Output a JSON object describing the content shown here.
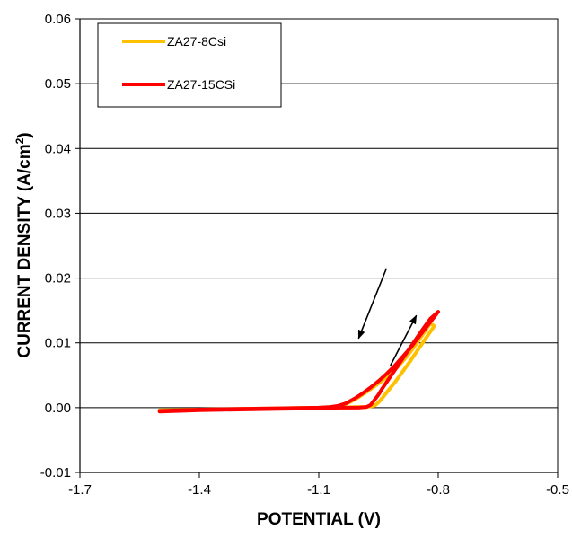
{
  "chart_data": {
    "type": "line",
    "title": "",
    "xlabel": "POTENTIAL (V)",
    "ylabel": "CURRENT DENSITY (A/cm",
    "ylabel_superscript": "2",
    "ylabel_suffix": ")",
    "xlim": [
      -1.7,
      -0.5
    ],
    "ylim": [
      -0.01,
      0.06
    ],
    "x_ticks": [
      -1.7,
      -1.4,
      -1.1,
      -0.8,
      -0.5
    ],
    "x_tick_labels": [
      "-1.7",
      "-1.4",
      "-1.1",
      "-0.8",
      "-0.5"
    ],
    "y_ticks": [
      -0.01,
      0.0,
      0.01,
      0.02,
      0.03,
      0.04,
      0.05,
      0.06
    ],
    "y_tick_labels": [
      "-0.01",
      "0.00",
      "0.01",
      "0.02",
      "0.03",
      "0.04",
      "0.05",
      "0.06"
    ],
    "grid": "horizontal",
    "legend_position": "top-left",
    "series": [
      {
        "name": "ZA27-8Csi",
        "color": "#FFC000",
        "x": [
          -1.5,
          -1.4,
          -1.3,
          -1.2,
          -1.1,
          -1.05,
          -1.0,
          -0.98,
          -0.96,
          -0.95,
          -0.94,
          -0.93,
          -0.91,
          -0.89,
          -0.87,
          -0.85,
          -0.83,
          -0.81,
          -0.82,
          -0.84,
          -0.86,
          -0.88,
          -0.9,
          -0.92,
          -0.94,
          -0.96,
          -0.98,
          -1.0,
          -1.02,
          -1.04,
          -1.06,
          -1.08,
          -1.1,
          -1.2,
          -1.3,
          -1.4,
          -1.5
        ],
        "y": [
          -0.0004,
          -0.0003,
          -0.0002,
          -0.0001,
          0.0,
          0.0,
          0.0001,
          0.0001,
          0.0003,
          0.0008,
          0.0015,
          0.0023,
          0.0038,
          0.0055,
          0.0072,
          0.009,
          0.0108,
          0.0126,
          0.013,
          0.0112,
          0.0094,
          0.0078,
          0.0064,
          0.0052,
          0.0042,
          0.0033,
          0.0024,
          0.0016,
          0.0009,
          0.0004,
          0.0001,
          0.0,
          0.0,
          -0.0001,
          -0.0002,
          -0.0003,
          -0.0004
        ]
      },
      {
        "name": "ZA27-15CSi",
        "color": "#FF0000",
        "x": [
          -1.5,
          -1.4,
          -1.3,
          -1.2,
          -1.1,
          -1.05,
          -1.0,
          -0.98,
          -0.97,
          -0.96,
          -0.95,
          -0.94,
          -0.92,
          -0.9,
          -0.88,
          -0.86,
          -0.84,
          -0.82,
          -0.8,
          -0.81,
          -0.83,
          -0.85,
          -0.87,
          -0.89,
          -0.91,
          -0.93,
          -0.95,
          -0.97,
          -0.99,
          -1.01,
          -1.03,
          -1.05,
          -1.07,
          -1.1,
          -1.2,
          -1.3,
          -1.4,
          -1.5
        ],
        "y": [
          -0.0006,
          -0.0004,
          -0.0003,
          -0.0002,
          -0.0001,
          0.0,
          0.0,
          0.0001,
          0.0004,
          0.0012,
          0.002,
          0.003,
          0.0048,
          0.0066,
          0.0084,
          0.0102,
          0.012,
          0.0137,
          0.0148,
          0.014,
          0.0124,
          0.0108,
          0.0092,
          0.0078,
          0.0064,
          0.0052,
          0.0041,
          0.0031,
          0.0022,
          0.0014,
          0.0007,
          0.0003,
          0.0001,
          0.0,
          -0.0001,
          -0.0002,
          -0.0003,
          -0.0005
        ]
      }
    ],
    "annotations": [
      {
        "type": "arrow",
        "direction": "down-left",
        "from": [
          -0.93,
          0.0215
        ],
        "to": [
          -1.0,
          0.0107
        ]
      },
      {
        "type": "arrow",
        "direction": "up-right",
        "from": [
          -0.92,
          0.0065
        ],
        "to": [
          -0.855,
          0.0142
        ]
      }
    ]
  }
}
